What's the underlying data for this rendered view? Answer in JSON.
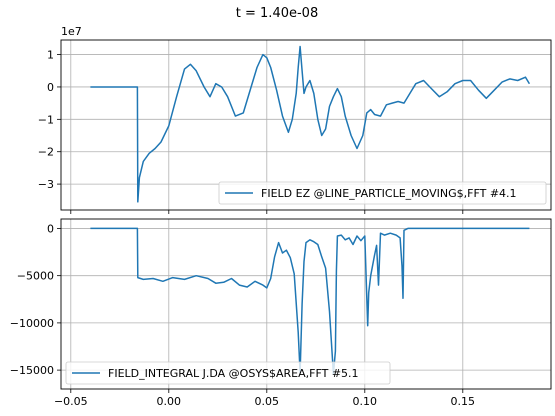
{
  "figure": {
    "suptitle": "t = 1.40e-08"
  },
  "chart_data": [
    {
      "type": "line",
      "xlim": [
        -0.055,
        0.195
      ],
      "ylim": [
        -3.8,
        1.45
      ],
      "offset_label": "1e7",
      "grid": true,
      "xticks": [
        -0.05,
        0.0,
        0.05,
        0.1,
        0.15
      ],
      "xtick_labels": [
        "",
        "",
        "",
        "",
        ""
      ],
      "yticks": [
        1,
        0,
        -1,
        -2,
        -3
      ],
      "ytick_labels": [
        "1",
        "0",
        "−1",
        "−2",
        "−3"
      ],
      "legend_loc": "lower right",
      "series": [
        {
          "name": "FIELD EZ @LINE_PARTICLE_MOVING$,FFT #4.1",
          "color": "#1f77b4",
          "x": [
            -0.04,
            -0.016,
            -0.0158,
            -0.015,
            -0.013,
            -0.01,
            -0.007,
            -0.004,
            0.0,
            0.004,
            0.008,
            0.011,
            0.014,
            0.018,
            0.021,
            0.024,
            0.027,
            0.03,
            0.034,
            0.038,
            0.042,
            0.045,
            0.048,
            0.05,
            0.052,
            0.055,
            0.058,
            0.061,
            0.063,
            0.065,
            0.066,
            0.067,
            0.068,
            0.069,
            0.07,
            0.072,
            0.074,
            0.076,
            0.078,
            0.08,
            0.082,
            0.084,
            0.086,
            0.088,
            0.09,
            0.093,
            0.096,
            0.099,
            0.101,
            0.103,
            0.105,
            0.108,
            0.111,
            0.114,
            0.117,
            0.12,
            0.123,
            0.126,
            0.13,
            0.134,
            0.138,
            0.142,
            0.146,
            0.15,
            0.154,
            0.158,
            0.162,
            0.166,
            0.17,
            0.174,
            0.178,
            0.182,
            0.184
          ],
          "y": [
            0.0,
            0.0,
            -3.55,
            -2.8,
            -2.3,
            -2.05,
            -1.9,
            -1.7,
            -1.2,
            -0.3,
            0.55,
            0.7,
            0.5,
            0.0,
            -0.3,
            0.1,
            0.0,
            -0.3,
            -0.9,
            -0.8,
            0.0,
            0.6,
            1.0,
            0.9,
            0.6,
            -0.1,
            -0.9,
            -1.4,
            -1.0,
            -0.2,
            0.6,
            1.25,
            0.5,
            -0.2,
            0.0,
            0.2,
            -0.2,
            -1.0,
            -1.5,
            -1.3,
            -0.6,
            -0.3,
            -0.05,
            -0.3,
            -0.9,
            -1.5,
            -1.9,
            -1.5,
            -0.8,
            -0.7,
            -0.85,
            -0.9,
            -0.55,
            -0.5,
            -0.45,
            -0.5,
            -0.2,
            0.1,
            0.2,
            -0.05,
            -0.3,
            -0.15,
            0.1,
            0.2,
            0.2,
            -0.1,
            -0.35,
            -0.1,
            0.15,
            0.25,
            0.2,
            0.3,
            0.1
          ]
        }
      ]
    },
    {
      "type": "line",
      "xlim": [
        -0.055,
        0.195
      ],
      "ylim": [
        -17000,
        1000
      ],
      "grid": true,
      "xticks": [
        -0.05,
        0.0,
        0.05,
        0.1,
        0.15
      ],
      "xtick_labels": [
        "−0.05",
        "0.00",
        "0.05",
        "0.10",
        "0.15"
      ],
      "yticks": [
        0,
        -5000,
        -10000,
        -15000
      ],
      "ytick_labels": [
        "0",
        "−5000",
        "−10000",
        "−15000"
      ],
      "legend_loc": "lower left",
      "series": [
        {
          "name": "FIELD_INTEGRAL J.DA @OSYS$AREA,FFT #5.1",
          "color": "#1f77b4",
          "x": [
            -0.04,
            -0.02,
            -0.016,
            -0.0158,
            -0.013,
            -0.008,
            -0.003,
            0.002,
            0.008,
            0.014,
            0.02,
            0.024,
            0.028,
            0.032,
            0.036,
            0.04,
            0.044,
            0.048,
            0.05,
            0.052,
            0.054,
            0.056,
            0.058,
            0.06,
            0.062,
            0.064,
            0.066,
            0.067,
            0.068,
            0.069,
            0.07,
            0.072,
            0.074,
            0.076,
            0.078,
            0.08,
            0.082,
            0.084,
            0.085,
            0.0855,
            0.086,
            0.088,
            0.09,
            0.092,
            0.094,
            0.096,
            0.098,
            0.1,
            0.1015,
            0.102,
            0.103,
            0.105,
            0.106,
            0.107,
            0.108,
            0.11,
            0.113,
            0.116,
            0.118,
            0.119,
            0.1195,
            0.12,
            0.122,
            0.13,
            0.15,
            0.17,
            0.184
          ],
          "y": [
            0,
            0,
            0,
            -5200,
            -5400,
            -5300,
            -5600,
            -5200,
            -5400,
            -5000,
            -5300,
            -5800,
            -5700,
            -5300,
            -6000,
            -6200,
            -5600,
            -6000,
            -6300,
            -5300,
            -3000,
            -1500,
            -2600,
            -2300,
            -3100,
            -4800,
            -11000,
            -15300,
            -8000,
            -3500,
            -1500,
            -1200,
            -1400,
            -1700,
            -3000,
            -4200,
            -8800,
            -15400,
            -13000,
            -4500,
            -800,
            -700,
            -1200,
            -1000,
            -1700,
            -800,
            -1300,
            -800,
            -10300,
            -6800,
            -5000,
            -2800,
            -1800,
            -6000,
            -500,
            -700,
            -500,
            -700,
            -1000,
            -4000,
            -7400,
            -200,
            0,
            0,
            0,
            0,
            0
          ]
        }
      ]
    }
  ]
}
